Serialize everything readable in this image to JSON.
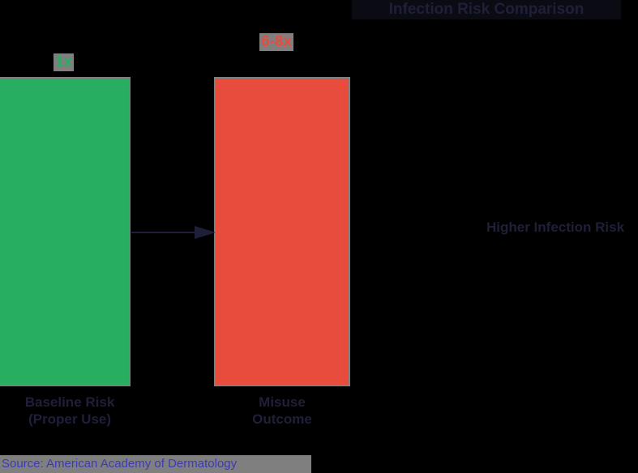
{
  "chart_data": {
    "type": "bar",
    "title": "Infection Risk Comparison",
    "categories": [
      "Baseline Risk (Proper Use)",
      "Misuse Outcome"
    ],
    "values": [
      1,
      7
    ],
    "value_labels": [
      "1x",
      "6-8x"
    ],
    "annotation": "Higher Infection Risk",
    "colors": [
      "#27ae60",
      "#e74c3c"
    ],
    "xlabel": "",
    "ylabel": "",
    "grid": false,
    "legend": "none",
    "source": "Source: American Academy of Dermatology"
  },
  "title": "Infection Risk Comparison",
  "bars": {
    "left": {
      "value_label": "1x",
      "line1": "Baseline Risk",
      "line2": "(Proper Use)",
      "color": "#27ae60"
    },
    "right": {
      "value_label": "6-8x",
      "line1": "Misuse",
      "line2": "Outcome",
      "color": "#e74c3c"
    }
  },
  "side_label": "Higher Infection Risk",
  "source": "Source: American Academy of Dermatology"
}
